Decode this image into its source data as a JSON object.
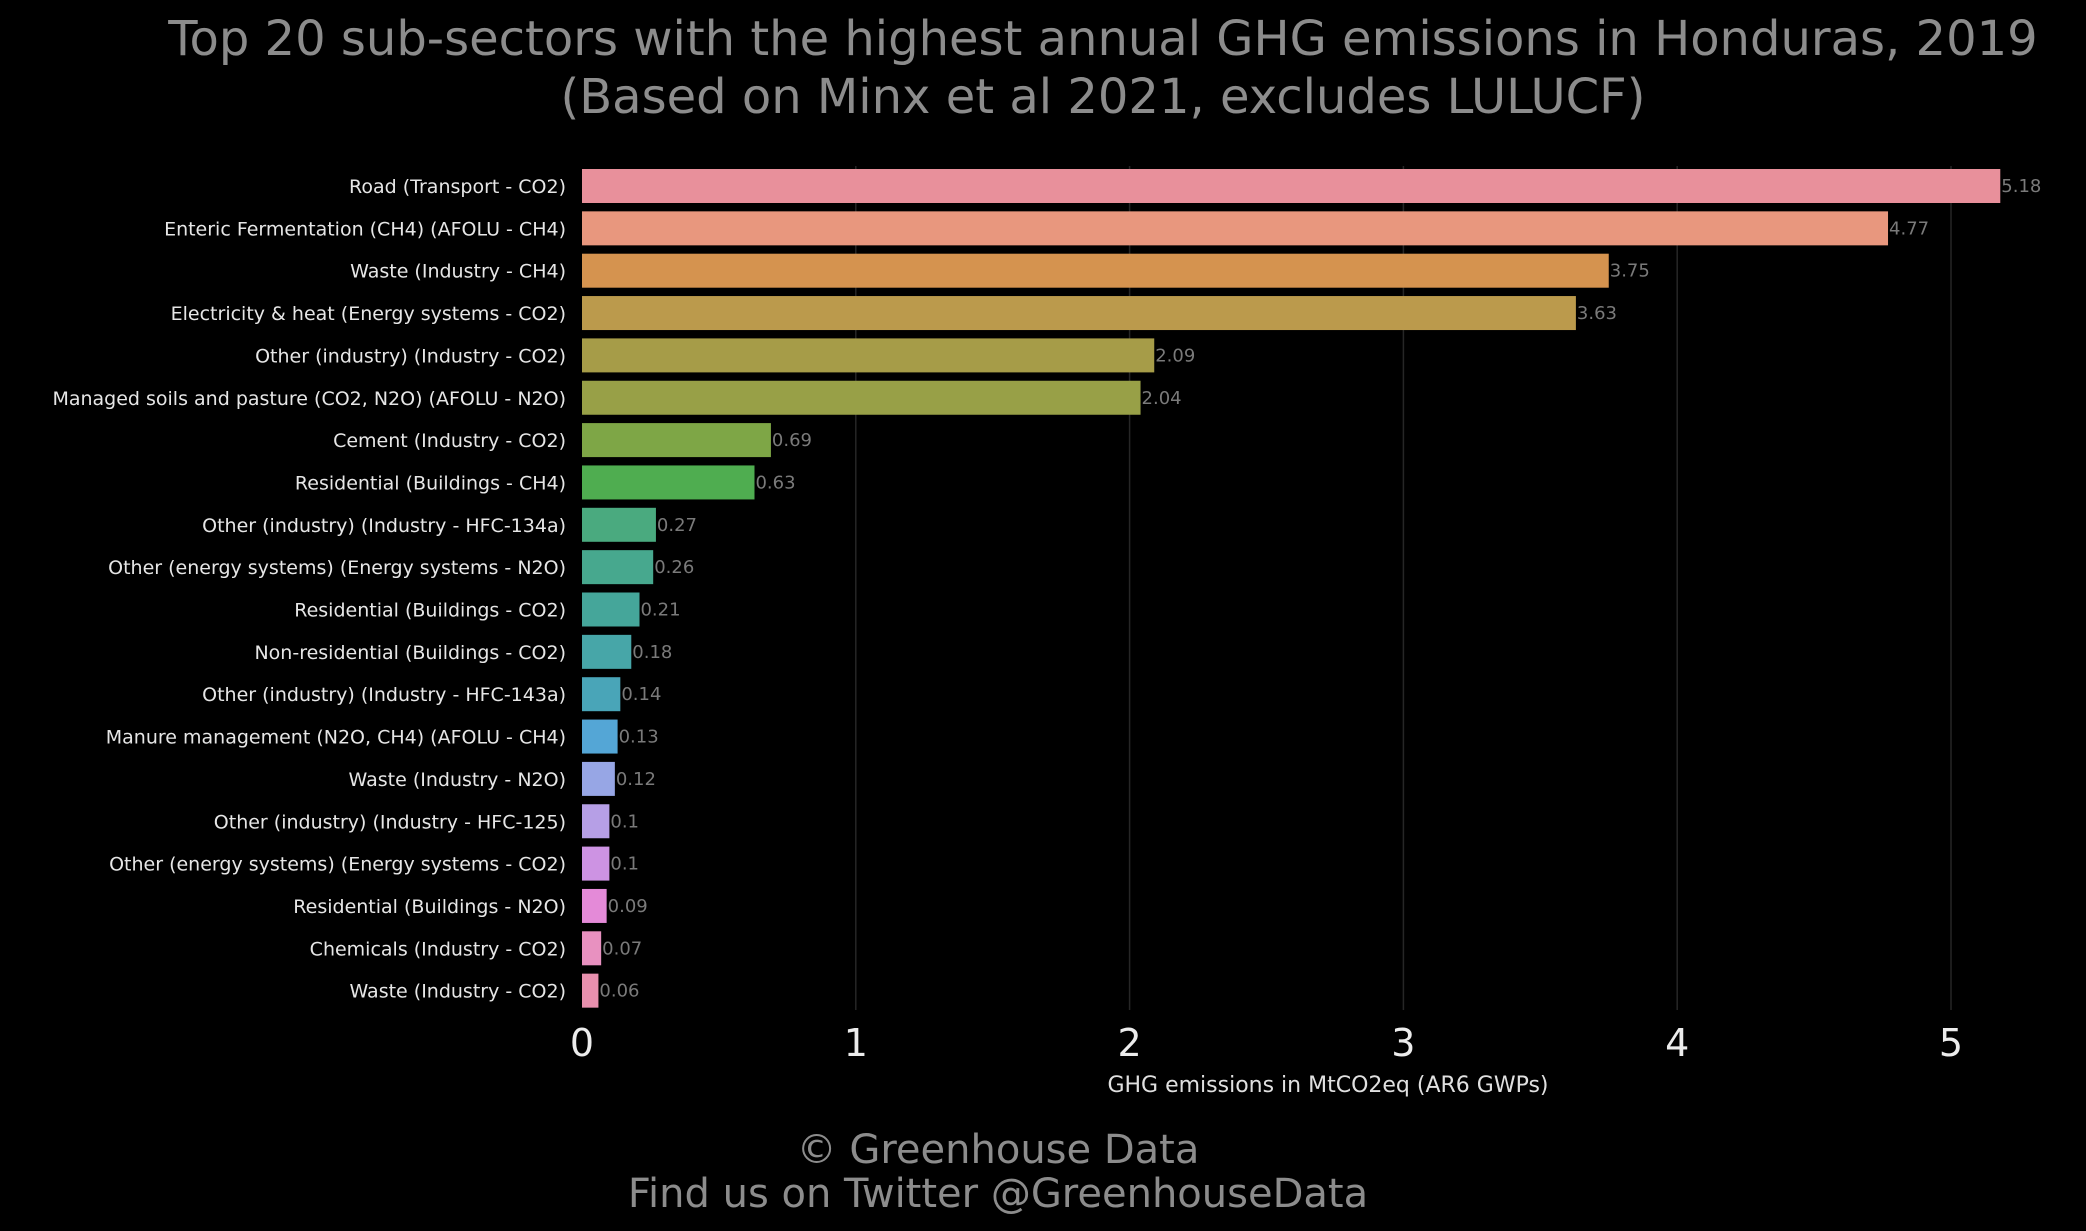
{
  "title_line1": "Top 20 sub-sectors with the highest annual GHG emissions in Honduras, 2019",
  "title_line2": "(Based on Minx et al 2021, excludes LULUCF)",
  "footer_line1": "© Greenhouse Data",
  "footer_line2": "Find us on Twitter @GreenhouseData",
  "chart_data": {
    "type": "bar",
    "orientation": "horizontal",
    "title": "Top 20 sub-sectors with the highest annual GHG emissions in Honduras, 2019 (Based on Minx et al 2021, excludes LULUCF)",
    "xlabel": "GHG emissions in MtCO2eq (AR6 GWPs)",
    "ylabel": "",
    "xlim": [
      0,
      5.35
    ],
    "xticks": [
      "0",
      "1",
      "2",
      "3",
      "4",
      "5"
    ],
    "grid": "vertical",
    "categories": [
      "Road (Transport - CO2)",
      "Enteric Fermentation (CH4) (AFOLU - CH4)",
      "Waste (Industry - CH4)",
      "Electricity & heat (Energy systems - CO2)",
      "Other (industry) (Industry - CO2)",
      "Managed soils and pasture (CO2, N2O) (AFOLU - N2O)",
      "Cement (Industry - CO2)",
      "Residential (Buildings - CH4)",
      "Other (industry) (Industry - HFC-134a)",
      "Other (energy systems) (Energy systems - N2O)",
      "Residential (Buildings - CO2)",
      "Non-residential (Buildings - CO2)",
      "Other (industry) (Industry - HFC-143a)",
      "Manure management (N2O, CH4) (AFOLU - CH4)",
      "Waste (Industry - N2O)",
      "Other (industry) (Industry - HFC-125)",
      "Other (energy systems) (Energy systems - CO2)",
      "Residential (Buildings - N2O)",
      "Chemicals (Industry - CO2)",
      "Waste (Industry - CO2)"
    ],
    "values": [
      5.18,
      4.77,
      3.75,
      3.63,
      2.09,
      2.04,
      0.69,
      0.63,
      0.27,
      0.26,
      0.21,
      0.18,
      0.14,
      0.13,
      0.12,
      0.1,
      0.1,
      0.09,
      0.07,
      0.06
    ],
    "value_labels": [
      "5.18",
      "4.77",
      "3.75",
      "3.63",
      "2.09",
      "2.04",
      "0.69",
      "0.63",
      "0.27",
      "0.26",
      "0.21",
      "0.18",
      "0.14",
      "0.13",
      "0.12",
      "0.1",
      "0.1",
      "0.09",
      "0.07",
      "0.06"
    ],
    "colors": [
      "#e8909b",
      "#e8977e",
      "#d5934f",
      "#bb9a4c",
      "#a69c48",
      "#98a047",
      "#7ea646",
      "#4fad50",
      "#4aaa7f",
      "#47a88e",
      "#45a69a",
      "#47a6a8",
      "#49a5b8",
      "#54a6d6",
      "#97a6e5",
      "#b69fe6",
      "#cd93e3",
      "#e48ad8",
      "#e891c0",
      "#e890ae"
    ]
  }
}
